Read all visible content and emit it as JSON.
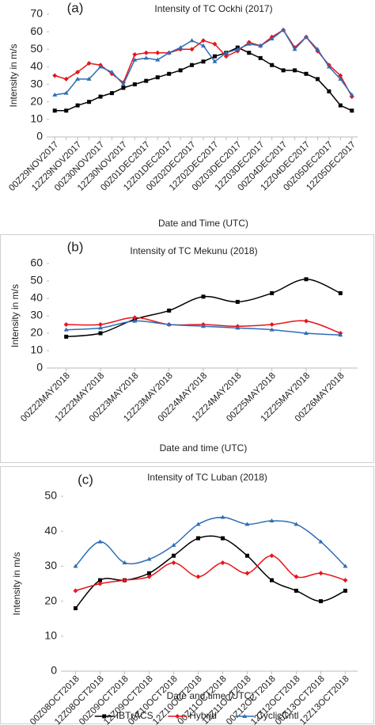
{
  "chart_data": [
    {
      "type": "line",
      "panel_label": "(a)",
      "title": "Intensity of TC Ockhi (2017)",
      "x_label": "Date and Time (UTC)",
      "y_label": "Intensity in m/s",
      "categories": [
        "00Z29NOV2017",
        null,
        "12Z29NOV2017",
        null,
        "00Z30NOV2017",
        null,
        "12Z30NOV2017",
        null,
        "00Z01DEC2017",
        null,
        "12Z01DEC2017",
        null,
        "00Z02DEC2017",
        null,
        "12Z02DEC2017",
        null,
        "00Z03DEC2017",
        null,
        "12Z03DEC2017",
        null,
        "00Z04DEC2017",
        null,
        "12Z04DEC2017",
        null,
        "00Z05DEC2017",
        null,
        "12Z05DEC2017"
      ],
      "series": [
        {
          "color": "#000000",
          "marker": "square",
          "values": [
            15,
            15,
            18,
            20,
            23,
            25,
            28,
            30,
            32,
            34,
            36,
            38,
            41,
            43,
            46,
            48,
            51,
            48,
            45,
            41,
            38,
            38,
            36,
            33,
            26,
            18,
            15
          ]
        },
        {
          "color": "#e8141b",
          "marker": "diamond",
          "values": [
            35,
            33,
            37,
            42,
            41,
            36,
            31,
            47,
            48,
            48,
            48,
            50,
            50,
            55,
            53,
            46,
            49,
            54,
            52,
            57,
            61,
            51,
            57,
            49,
            41,
            35,
            23
          ]
        },
        {
          "color": "#2f6db5",
          "marker": "triangle",
          "values": [
            24,
            25,
            33,
            33,
            40,
            37,
            30,
            44,
            45,
            44,
            48,
            51,
            55,
            52,
            43,
            48,
            50,
            53,
            52,
            56,
            61,
            50,
            57,
            50,
            40,
            33,
            24
          ]
        }
      ],
      "ylim": [
        0,
        70
      ],
      "yticks": [
        0,
        10,
        20,
        30,
        40,
        50,
        60,
        70
      ],
      "smooth": false
    },
    {
      "type": "line",
      "panel_label": "(b)",
      "title": "Intensity of TC Mekunu (2018)",
      "x_label": "Date and time (UTC)",
      "y_label": "Intensity in m/s",
      "categories": [
        "00Z22MAY2018",
        "12Z22MAY2018",
        "00Z23MAY2018",
        "12Z23MAY2018",
        "00Z24MAY2018",
        "12Z24MAY2018",
        "00Z25MAY2018",
        "12Z25MAY2018",
        "00Z26MAY2018"
      ],
      "series": [
        {
          "color": "#000000",
          "marker": "square",
          "values": [
            18,
            20,
            28,
            33,
            41,
            38,
            43,
            51,
            43
          ]
        },
        {
          "color": "#e8141b",
          "marker": "diamond",
          "values": [
            25,
            25,
            29,
            25,
            25,
            24,
            25,
            27,
            20
          ]
        },
        {
          "color": "#2f6db5",
          "marker": "triangle",
          "values": [
            22,
            23,
            27,
            25,
            24,
            23,
            22,
            20,
            19
          ]
        }
      ],
      "ylim": [
        0,
        60
      ],
      "yticks": [
        0,
        10,
        20,
        30,
        40,
        50,
        60
      ],
      "smooth": true
    },
    {
      "type": "line",
      "panel_label": "(c)",
      "title": "Intensity of TC Luban (2018)",
      "x_label": "Date and time (UTC)",
      "y_label": "Intensity in m/s",
      "categories": [
        "00Z08OCT2018",
        "12Z08OCT2018",
        "00Z09OCT2018",
        "12Z09OCT2018",
        "00Z10OCT2018",
        "12Z10OCT2018",
        "00Z11OCT2018",
        "12Z11OCT2018",
        "00Z12OCT2018",
        "12Z12OCT2018",
        "00Z13OCT2018",
        "12Z13OCT2018"
      ],
      "series": [
        {
          "name": "IBTrACS",
          "color": "#000000",
          "marker": "square",
          "values": [
            18,
            26,
            26,
            28,
            33,
            38,
            38,
            33,
            26,
            23,
            20,
            23
          ]
        },
        {
          "name": "Hybrid",
          "color": "#e8141b",
          "marker": "diamond",
          "values": [
            23,
            25,
            26,
            27,
            31,
            27,
            31,
            28,
            33,
            27,
            28,
            26
          ]
        },
        {
          "name": "CyclicCntl",
          "color": "#2f6db5",
          "marker": "triangle",
          "values": [
            30,
            37,
            31,
            32,
            36,
            42,
            44,
            42,
            43,
            42,
            37,
            30
          ]
        }
      ],
      "ylim": [
        0,
        50
      ],
      "yticks": [
        0,
        10,
        20,
        30,
        40,
        50
      ],
      "smooth": true,
      "legend": "bottom"
    }
  ]
}
